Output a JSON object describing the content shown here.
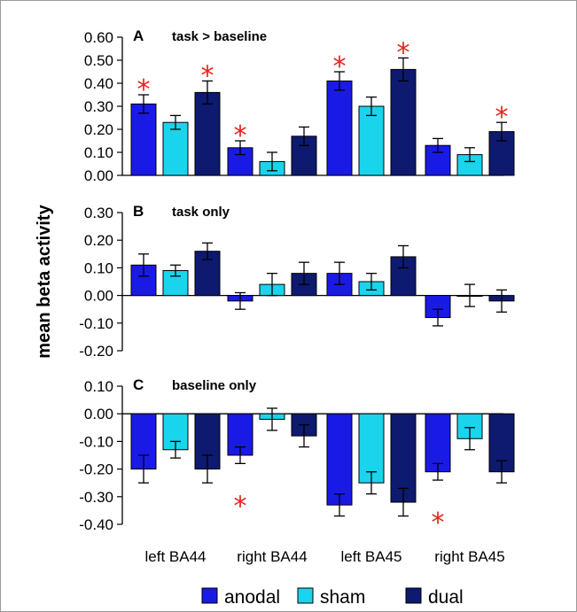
{
  "chart_data": {
    "type": "bar",
    "ylabel": "mean beta activity",
    "categories": [
      "left BA44",
      "right BA44",
      "left BA45",
      "right BA45"
    ],
    "legend": {
      "placement": "bottom",
      "entries": [
        {
          "name": "anodal",
          "color": "#1a1ae6"
        },
        {
          "name": "sham",
          "color": "#1ad4ee"
        },
        {
          "name": "dual",
          "color": "#0e1a70"
        }
      ]
    },
    "panels": [
      {
        "letter": "A",
        "title": "task > baseline",
        "ylim": [
          0.0,
          0.6
        ],
        "ticks": [
          "0.60",
          "0.50",
          "0.40",
          "0.30",
          "0.20",
          "0.10",
          "0.00"
        ],
        "tick_values": [
          0.6,
          0.5,
          0.4,
          0.3,
          0.2,
          0.1,
          0.0
        ],
        "series": [
          {
            "name": "anodal",
            "values": [
              0.31,
              0.12,
              0.41,
              0.13
            ],
            "errors": [
              0.04,
              0.03,
              0.04,
              0.03
            ],
            "significant": [
              true,
              true,
              true,
              false
            ]
          },
          {
            "name": "sham",
            "values": [
              0.23,
              0.06,
              0.3,
              0.09
            ],
            "errors": [
              0.03,
              0.04,
              0.04,
              0.03
            ],
            "significant": [
              false,
              false,
              false,
              false
            ]
          },
          {
            "name": "dual",
            "values": [
              0.36,
              0.17,
              0.46,
              0.19
            ],
            "errors": [
              0.05,
              0.04,
              0.05,
              0.04
            ],
            "significant": [
              true,
              false,
              true,
              true
            ]
          }
        ]
      },
      {
        "letter": "B",
        "title": "task only",
        "ylim": [
          -0.2,
          0.3
        ],
        "ticks": [
          "0.30",
          "0.20",
          "0.10",
          "0.00",
          "-0.10",
          "-0.20"
        ],
        "tick_values": [
          0.3,
          0.2,
          0.1,
          0.0,
          -0.1,
          -0.2
        ],
        "series": [
          {
            "name": "anodal",
            "values": [
              0.11,
              -0.02,
              0.08,
              -0.08
            ],
            "errors": [
              0.04,
              0.03,
              0.04,
              0.03
            ],
            "significant": [
              false,
              false,
              false,
              false
            ]
          },
          {
            "name": "sham",
            "values": [
              0.09,
              0.04,
              0.05,
              0.0
            ],
            "errors": [
              0.02,
              0.04,
              0.03,
              0.04
            ],
            "significant": [
              false,
              false,
              false,
              false
            ]
          },
          {
            "name": "dual",
            "values": [
              0.16,
              0.08,
              0.14,
              -0.02
            ],
            "errors": [
              0.03,
              0.04,
              0.04,
              0.04
            ],
            "significant": [
              false,
              false,
              false,
              false
            ]
          }
        ]
      },
      {
        "letter": "C",
        "title": "baseline only",
        "ylim": [
          -0.4,
          0.1
        ],
        "ticks": [
          "0.10",
          "0.00",
          "-0.10",
          "-0.20",
          "-0.30",
          "-0.40"
        ],
        "tick_values": [
          0.1,
          0.0,
          -0.1,
          -0.2,
          -0.3,
          -0.4
        ],
        "series": [
          {
            "name": "anodal",
            "values": [
              -0.2,
              -0.15,
              -0.33,
              -0.21
            ],
            "errors": [
              0.05,
              0.03,
              0.04,
              0.03
            ],
            "significant": [
              false,
              true,
              false,
              true
            ]
          },
          {
            "name": "sham",
            "values": [
              -0.13,
              -0.02,
              -0.25,
              -0.09
            ],
            "errors": [
              0.03,
              0.04,
              0.04,
              0.04
            ],
            "significant": [
              false,
              false,
              false,
              false
            ]
          },
          {
            "name": "dual",
            "values": [
              -0.2,
              -0.08,
              -0.32,
              -0.21
            ],
            "errors": [
              0.05,
              0.04,
              0.05,
              0.04
            ],
            "significant": [
              false,
              false,
              false,
              false
            ]
          }
        ]
      }
    ],
    "significance_marker": "*",
    "significance_color": "#e8211d"
  }
}
